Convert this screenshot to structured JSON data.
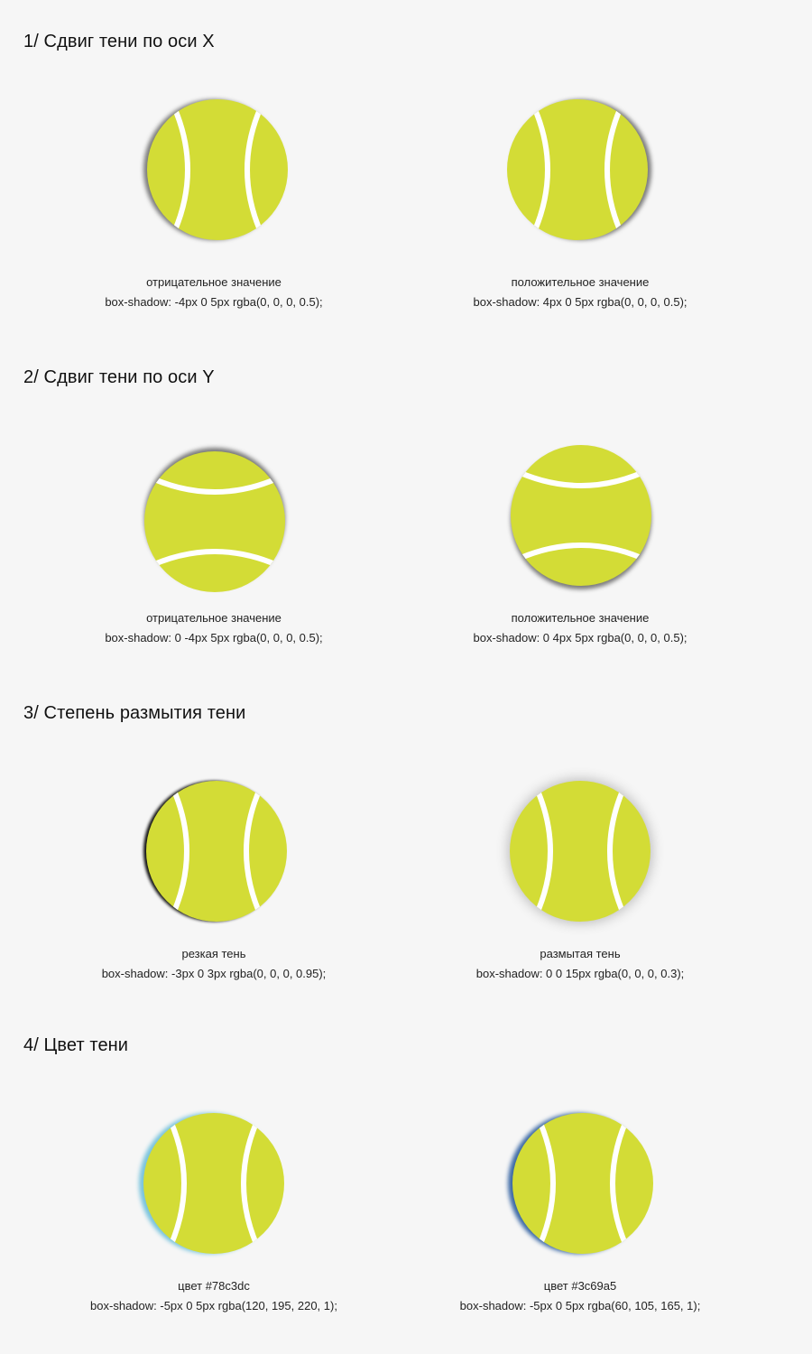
{
  "sections": [
    {
      "title": "1/ Сдвиг тени по оси X",
      "examples": [
        {
          "label": "отрицательное значение",
          "code": "box-shadow: -4px 0 5px rgba(0, 0, 0, 0.5);"
        },
        {
          "label": "положительное значение",
          "code": "box-shadow: 4px 0 5px rgba(0, 0, 0, 0.5);"
        }
      ]
    },
    {
      "title": "2/ Сдвиг тени по оси Y",
      "examples": [
        {
          "label": "отрицательное значение",
          "code": "box-shadow: 0 -4px 5px rgba(0, 0, 0, 0.5);"
        },
        {
          "label": "положительное значение",
          "code": "box-shadow: 0 4px 5px rgba(0, 0, 0, 0.5);"
        }
      ]
    },
    {
      "title": "3/ Степень размытия тени",
      "examples": [
        {
          "label": "резкая тень",
          "code": "box-shadow: -3px 0 3px rgba(0, 0, 0, 0.95);"
        },
        {
          "label": "размытая тень",
          "code": "box-shadow: 0 0 15px rgba(0, 0, 0, 0.3);"
        }
      ]
    },
    {
      "title": "4/ Цвет тени",
      "examples": [
        {
          "label": "цвет #78c3dc",
          "code": "box-shadow: -5px 0 5px rgba(120, 195, 220, 1);"
        },
        {
          "label": "цвет #3c69a5",
          "code": "box-shadow: -5px 0 5px rgba(60, 105, 165, 1);"
        }
      ]
    }
  ],
  "colors": {
    "background": "#f6f6f6",
    "ball": "#d3dc36",
    "seam": "#ffffff"
  }
}
